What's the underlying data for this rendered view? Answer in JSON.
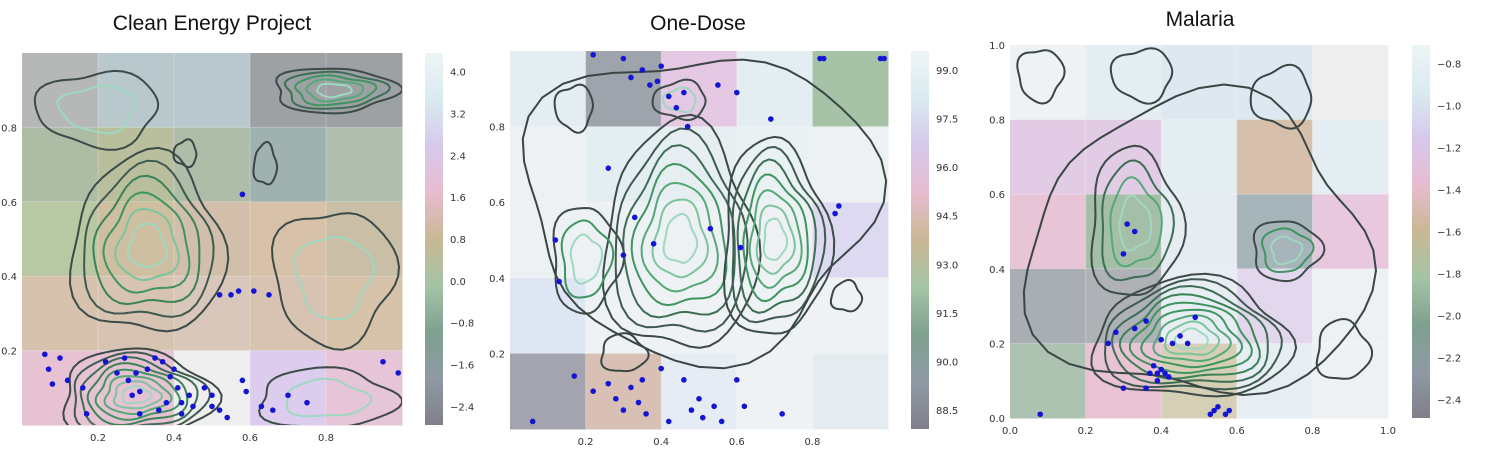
{
  "chart_data": [
    {
      "type": "heatmap",
      "title": "Clean Energy Project",
      "grid": true,
      "xlim": [
        0,
        1
      ],
      "ylim": [
        0,
        1
      ],
      "xticks": [
        "0.2",
        "0.4",
        "0.6",
        "0.8"
      ],
      "yticks": [
        "0.2",
        "0.4",
        "0.6",
        "0.8"
      ],
      "colorbar": {
        "ticks": [
          "4.0",
          "3.2",
          "2.4",
          "1.6",
          "0.8",
          "0.0",
          "−0.8",
          "−1.6",
          "−2.4"
        ],
        "min": -2.8,
        "max": 4.6
      },
      "cell_colors": [
        [
          "#b5b8b7",
          "#b9c8cc",
          "#b9c8cc",
          "#9da1a4",
          "#9da1a4"
        ],
        [
          "#aebca6",
          "#b9bf9c",
          "#adbda7",
          "#9fb2af",
          "#b0bfae"
        ],
        [
          "#b7c8a2",
          "#cdbfa0",
          "#d1bfab",
          "#d7c2a9",
          "#c8bfa6"
        ],
        [
          "#d7c2ad",
          "#d7c3b2",
          "#d9c7bb",
          "#d8c3b2",
          "#d7c3aa"
        ],
        [
          "#e6c2d3",
          "#e6c2d3",
          "#eeeeee",
          "#dccdee",
          "#e7c5d8"
        ]
      ],
      "points": [
        [
          0.06,
          0.19
        ],
        [
          0.07,
          0.15
        ],
        [
          0.08,
          0.11
        ],
        [
          0.1,
          0.18
        ],
        [
          0.12,
          0.12
        ],
        [
          0.16,
          0.1
        ],
        [
          0.17,
          0.03
        ],
        [
          0.22,
          0.17
        ],
        [
          0.25,
          0.14
        ],
        [
          0.27,
          0.18
        ],
        [
          0.28,
          0.12
        ],
        [
          0.29,
          0.08
        ],
        [
          0.3,
          0.14
        ],
        [
          0.31,
          0.09
        ],
        [
          0.33,
          0.15
        ],
        [
          0.35,
          0.18
        ],
        [
          0.37,
          0.17
        ],
        [
          0.39,
          0.13
        ],
        [
          0.4,
          0.15
        ],
        [
          0.41,
          0.1
        ],
        [
          0.42,
          0.06
        ],
        [
          0.42,
          0.03
        ],
        [
          0.44,
          0.08
        ],
        [
          0.45,
          0.05
        ],
        [
          0.48,
          0.1
        ],
        [
          0.5,
          0.08
        ],
        [
          0.5,
          0.05
        ],
        [
          0.52,
          0.04
        ],
        [
          0.54,
          0.02
        ],
        [
          0.58,
          0.12
        ],
        [
          0.59,
          0.09
        ],
        [
          0.63,
          0.05
        ],
        [
          0.66,
          0.04
        ],
        [
          0.7,
          0.08
        ],
        [
          0.75,
          0.06
        ],
        [
          0.52,
          0.35
        ],
        [
          0.55,
          0.35
        ],
        [
          0.57,
          0.36
        ],
        [
          0.58,
          0.62
        ],
        [
          0.61,
          0.36
        ],
        [
          0.65,
          0.35
        ],
        [
          0.95,
          0.17
        ],
        [
          0.99,
          0.14
        ],
        [
          0.31,
          0.03
        ],
        [
          0.36,
          0.04
        ],
        [
          0.38,
          0.06
        ]
      ]
    },
    {
      "type": "heatmap",
      "title": "One-Dose",
      "grid": true,
      "xlim": [
        0,
        1
      ],
      "ylim": [
        0,
        1
      ],
      "xticks": [
        "0.2",
        "0.4",
        "0.6",
        "0.8"
      ],
      "yticks": [
        "0.2",
        "0.4",
        "0.6",
        "0.8"
      ],
      "colorbar": {
        "ticks": [
          "99.0",
          "97.5",
          "96.0",
          "94.5",
          "93.0",
          "91.5",
          "90.0",
          "88.5"
        ],
        "min": 87.6,
        "max": 99.8
      },
      "cell_colors": [
        [
          "#e4eef2",
          "#9fa4ac",
          "#e5c8e3",
          "#e4eef2",
          "#a6c3a7"
        ],
        [
          "#edf1f3",
          "#e4eef2",
          "#e6eef2",
          "#eaf1f3",
          "#edf1f3"
        ],
        [
          "#edf1f3",
          "#edf1f3",
          "#edf1f3",
          "#edf1f3",
          "#dcd9f1"
        ],
        [
          "#dee6f4",
          "#eef2f4",
          "#eef2f4",
          "#eef2f4",
          "#eef2f4"
        ],
        [
          "#a3a4ad",
          "#d8c0b4",
          "#e5ecf4",
          "#eef2f4",
          "#e4ecf0"
        ]
      ],
      "points": [
        [
          0.22,
          0.99
        ],
        [
          0.3,
          0.98
        ],
        [
          0.32,
          0.93
        ],
        [
          0.35,
          0.95
        ],
        [
          0.37,
          0.91
        ],
        [
          0.39,
          0.92
        ],
        [
          0.4,
          0.96
        ],
        [
          0.42,
          0.88
        ],
        [
          0.44,
          0.85
        ],
        [
          0.46,
          0.89
        ],
        [
          0.47,
          0.8
        ],
        [
          0.55,
          0.91
        ],
        [
          0.6,
          0.89
        ],
        [
          0.69,
          0.82
        ],
        [
          0.82,
          0.98
        ],
        [
          0.83,
          0.98
        ],
        [
          0.98,
          0.98
        ],
        [
          0.99,
          0.98
        ],
        [
          0.26,
          0.69
        ],
        [
          0.12,
          0.5
        ],
        [
          0.13,
          0.39
        ],
        [
          0.3,
          0.46
        ],
        [
          0.33,
          0.56
        ],
        [
          0.38,
          0.49
        ],
        [
          0.53,
          0.53
        ],
        [
          0.61,
          0.48
        ],
        [
          0.86,
          0.57
        ],
        [
          0.87,
          0.59
        ],
        [
          0.17,
          0.14
        ],
        [
          0.22,
          0.1
        ],
        [
          0.26,
          0.12
        ],
        [
          0.28,
          0.08
        ],
        [
          0.3,
          0.05
        ],
        [
          0.32,
          0.11
        ],
        [
          0.34,
          0.07
        ],
        [
          0.35,
          0.13
        ],
        [
          0.36,
          0.04
        ],
        [
          0.4,
          0.16
        ],
        [
          0.42,
          0.02
        ],
        [
          0.46,
          0.13
        ],
        [
          0.48,
          0.05
        ],
        [
          0.5,
          0.08
        ],
        [
          0.51,
          0.03
        ],
        [
          0.54,
          0.06
        ],
        [
          0.56,
          0.02
        ],
        [
          0.6,
          0.13
        ],
        [
          0.72,
          0.04
        ],
        [
          0.06,
          0.02
        ],
        [
          0.62,
          0.06
        ]
      ]
    },
    {
      "type": "heatmap",
      "title": "Malaria",
      "grid": true,
      "xlim": [
        0,
        1
      ],
      "ylim": [
        0,
        1
      ],
      "xticks": [
        "0.0",
        "0.2",
        "0.4",
        "0.6",
        "0.8",
        "1.0"
      ],
      "yticks": [
        "0.0",
        "0.2",
        "0.4",
        "0.6",
        "0.8",
        "1.0"
      ],
      "colorbar": {
        "ticks": [
          "−0.8",
          "−1.0",
          "−1.2",
          "−1.4",
          "−1.6",
          "−1.8",
          "−2.0",
          "−2.2",
          "−2.4"
        ],
        "min": -2.5,
        "max": -0.65
      },
      "cell_colors": [
        [
          "#eef2f4",
          "#e4edf2",
          "#dde8f0",
          "#dde8f0",
          "#eeeeef"
        ],
        [
          "#e2cbe4",
          "#e2cbe4",
          "#e4edf2",
          "#d6c0ab",
          "#e4edf2"
        ],
        [
          "#e7c5d7",
          "#a4bea8",
          "#e5edf3",
          "#a7b5ba",
          "#e7c8de"
        ],
        [
          "#a9adb4",
          "#aeb1b6",
          "#e8edf3",
          "#e3d7ee",
          "#eef1f4"
        ],
        [
          "#adc2b1",
          "#e9c3d4",
          "#d5cfb5",
          "#e6edf3",
          "#eef1f4"
        ]
      ],
      "points": [
        [
          0.31,
          0.52
        ],
        [
          0.33,
          0.5
        ],
        [
          0.3,
          0.44
        ],
        [
          0.28,
          0.23
        ],
        [
          0.26,
          0.2
        ],
        [
          0.33,
          0.24
        ],
        [
          0.36,
          0.26
        ],
        [
          0.38,
          0.14
        ],
        [
          0.39,
          0.12
        ],
        [
          0.4,
          0.13
        ],
        [
          0.41,
          0.12
        ],
        [
          0.42,
          0.11
        ],
        [
          0.37,
          0.12
        ],
        [
          0.39,
          0.1
        ],
        [
          0.36,
          0.08
        ],
        [
          0.3,
          0.08
        ],
        [
          0.4,
          0.21
        ],
        [
          0.43,
          0.2
        ],
        [
          0.47,
          0.2
        ],
        [
          0.49,
          0.27
        ],
        [
          0.53,
          0.01
        ],
        [
          0.54,
          0.02
        ],
        [
          0.55,
          0.03
        ],
        [
          0.57,
          0.01
        ],
        [
          0.58,
          0.02
        ],
        [
          0.08,
          0.01
        ],
        [
          0.45,
          0.22
        ]
      ]
    }
  ]
}
